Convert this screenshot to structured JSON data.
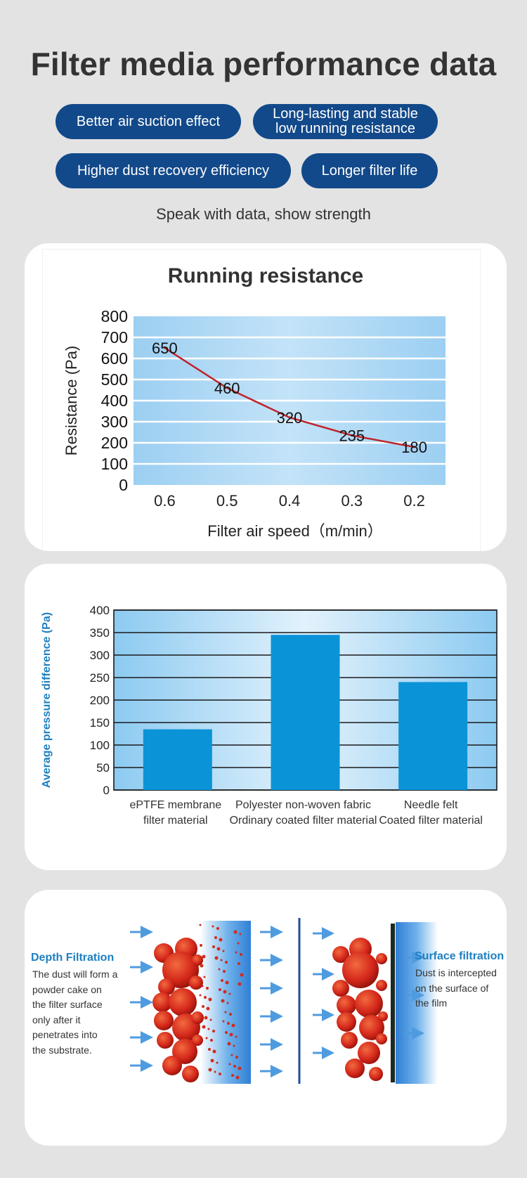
{
  "header": {
    "title": "Filter media performance data",
    "pills": [
      {
        "line1": "Better air suction effect",
        "line2": ""
      },
      {
        "line1": "Long-lasting and stable",
        "line2": "low running resistance"
      },
      {
        "line1": "Higher dust recovery efficiency",
        "line2": ""
      },
      {
        "line1": "Longer filter life",
        "line2": ""
      }
    ],
    "tagline": "Speak with data, show strength"
  },
  "colors": {
    "background": "#e3e3e3",
    "pill": "#12498a",
    "line": "#c0262c",
    "bar": "#0b93d8",
    "accent_text": "#1d7fc2"
  },
  "chart_data": [
    {
      "type": "line",
      "title": "Running resistance",
      "xlabel": "Filter air speed（m/min）",
      "ylabel": "Resistance (Pa)",
      "categories": [
        "0.6",
        "0.5",
        "0.4",
        "0.3",
        "0.2"
      ],
      "values": [
        650,
        460,
        320,
        235,
        180
      ],
      "data_labels": [
        "650",
        "460",
        "320",
        "235",
        "180"
      ],
      "ylim": [
        0,
        800
      ],
      "yticks": [
        "0",
        "100",
        "200",
        "300",
        "400",
        "500",
        "600",
        "700",
        "800"
      ],
      "grid": true,
      "legend": "none"
    },
    {
      "type": "bar",
      "title": "",
      "xlabel": "",
      "ylabel": "Average pressure difference (Pa)",
      "categories": [
        {
          "line1": "ePTFE membrane",
          "line2": "filter material"
        },
        {
          "line1": "Polyester non-woven fabric",
          "line2": "Ordinary coated filter material"
        },
        {
          "line1": "Needle felt",
          "line2": "Coated filter material"
        }
      ],
      "values": [
        135,
        345,
        240
      ],
      "ylim": [
        0,
        400
      ],
      "yticks": [
        "0",
        "50",
        "100",
        "150",
        "200",
        "250",
        "300",
        "350",
        "400"
      ],
      "grid": true,
      "legend": "none"
    }
  ],
  "filtration": {
    "depth": {
      "title": "Depth Filtration",
      "lines": [
        "The dust will form a",
        "powder cake on",
        "the filter surface",
        "only after it",
        "penetrates into",
        "the substrate."
      ]
    },
    "surface": {
      "title": "Surface filtration",
      "lines": [
        "Dust is intercepted",
        "on the surface of",
        "the film"
      ]
    }
  }
}
